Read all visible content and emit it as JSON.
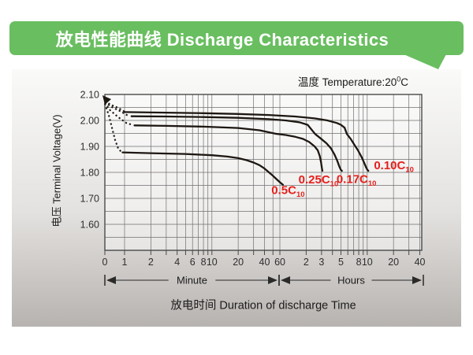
{
  "header": {
    "title": "放电性能曲线 Discharge Characteristics"
  },
  "colors": {
    "banner_green": "#69be60",
    "panel_top": "#fafaf9",
    "panel_bottom": "#b7b3b0",
    "grid": "#6f6f6f",
    "border": "#4a4a4a",
    "curve": "#1d1712",
    "series_label_red": "#e51f1b",
    "axis_text": "#2f2f2f"
  },
  "chart_data": {
    "type": "line",
    "title": "放电性能曲线 Discharge Characteristics",
    "temperature_note": {
      "prefix": "温度 Temperature:20",
      "degree": "0",
      "unit": "C"
    },
    "ylabel": "电压 Terminal Voltage(V)",
    "xlabel": "放电时间  Duration of discharge Time",
    "x_axis": {
      "scale": "logarithmic time (minutes), 0 pinned at left edge",
      "section_labels": [
        "Minute",
        "Hours"
      ],
      "ticks_minutes": [
        {
          "label": "0",
          "t": 0
        },
        {
          "label": "1",
          "t": 1
        },
        {
          "label": "2",
          "t": 2
        },
        {
          "label": "4",
          "t": 4
        },
        {
          "label": "6",
          "t": 6
        },
        {
          "label": "8",
          "t": 8
        },
        {
          "label": "10",
          "t": 10
        },
        {
          "label": "20",
          "t": 20
        },
        {
          "label": "40",
          "t": 40
        },
        {
          "label": "60",
          "t": 60
        }
      ],
      "ticks_hours": [
        {
          "label": "2",
          "t": 120
        },
        {
          "label": "3",
          "t": 180
        },
        {
          "label": "5",
          "t": 300
        },
        {
          "label": "8",
          "t": 480
        },
        {
          "label": "10",
          "t": 600
        },
        {
          "label": "20",
          "t": 1200
        },
        {
          "label": "40",
          "t": 2400
        }
      ],
      "gridlines_minutes": [
        1,
        2,
        3,
        4,
        5,
        6,
        7,
        8,
        9,
        10,
        20,
        30,
        40,
        50,
        60,
        120,
        180,
        240,
        300,
        360,
        420,
        480,
        540,
        600,
        1200,
        1800,
        2400
      ]
    },
    "y_axis": {
      "min": 1.5,
      "max": 2.1,
      "grid_step": 0.05,
      "ticks": [
        {
          "label": "2.10",
          "v": 2.1
        },
        {
          "label": "2.00",
          "v": 2.0
        },
        {
          "label": "1.90",
          "v": 1.9
        },
        {
          "label": "1.80",
          "v": 1.8
        },
        {
          "label": "1.70",
          "v": 1.7
        },
        {
          "label": "1.60",
          "v": 1.6
        }
      ]
    },
    "series": [
      {
        "name": "0.5C10",
        "label": "0.5C",
        "label_sub": "10",
        "label_anchor": {
          "t": 48,
          "v": 1.716
        },
        "dotted_points": [
          [
            0,
            2.065
          ],
          [
            0.66,
            2.02
          ],
          [
            0.72,
            1.97
          ],
          [
            0.78,
            1.925
          ],
          [
            0.85,
            1.89
          ],
          [
            0.93,
            1.878
          ]
        ],
        "points": [
          [
            0.95,
            1.877
          ],
          [
            2,
            1.874
          ],
          [
            5,
            1.871
          ],
          [
            10,
            1.866
          ],
          [
            15,
            1.861
          ],
          [
            20,
            1.855
          ],
          [
            25,
            1.847
          ],
          [
            30,
            1.838
          ],
          [
            35,
            1.828
          ],
          [
            40,
            1.815
          ],
          [
            45,
            1.8
          ],
          [
            50,
            1.787
          ],
          [
            55,
            1.774
          ],
          [
            60,
            1.762
          ],
          [
            65,
            1.752
          ]
        ]
      },
      {
        "name": "0.25C10",
        "label": "0.25C",
        "label_sub": "10",
        "label_anchor": {
          "t": 98,
          "v": 1.757
        },
        "dotted_points": [
          [
            0,
            2.068
          ],
          [
            0.68,
            2.04
          ],
          [
            0.85,
            2.012
          ],
          [
            1.05,
            1.99
          ],
          [
            1.25,
            1.982
          ]
        ],
        "points": [
          [
            1.3,
            1.981
          ],
          [
            3,
            1.979
          ],
          [
            8,
            1.976
          ],
          [
            20,
            1.971
          ],
          [
            35,
            1.962
          ],
          [
            53,
            1.949
          ],
          [
            70,
            1.944
          ],
          [
            90,
            1.937
          ],
          [
            110,
            1.929
          ],
          [
            130,
            1.917
          ],
          [
            150,
            1.9
          ],
          [
            163,
            1.885
          ],
          [
            172,
            1.862
          ],
          [
            178,
            1.838
          ],
          [
            182,
            1.815
          ],
          [
            184,
            1.806
          ]
        ]
      },
      {
        "name": "0.17C10",
        "label": "0.17C",
        "label_sub": "10",
        "label_anchor": {
          "t": 267,
          "v": 1.759
        },
        "dotted_points": [
          [
            0,
            2.071
          ],
          [
            0.7,
            2.053
          ],
          [
            0.9,
            2.035
          ],
          [
            1.1,
            2.018
          ]
        ],
        "points": [
          [
            1.2,
            2.016
          ],
          [
            3,
            2.015
          ],
          [
            8,
            2.013
          ],
          [
            20,
            2.01
          ],
          [
            45,
            2.005
          ],
          [
            70,
            2.0
          ],
          [
            100,
            1.993
          ],
          [
            125,
            1.983
          ],
          [
            152,
            1.948
          ],
          [
            180,
            1.928
          ],
          [
            205,
            1.912
          ],
          [
            230,
            1.893
          ],
          [
            252,
            1.87
          ],
          [
            272,
            1.845
          ],
          [
            288,
            1.822
          ],
          [
            300,
            1.809
          ],
          [
            308,
            1.806
          ]
        ]
      },
      {
        "name": "0.10C10",
        "label": "0.10C",
        "label_sub": "10",
        "label_anchor": {
          "t": 716,
          "v": 1.812
        },
        "dotted_points": [
          [
            0,
            2.074
          ],
          [
            0.7,
            2.06
          ],
          [
            0.85,
            2.048
          ],
          [
            1.0,
            2.034
          ]
        ],
        "points": [
          [
            1,
            2.032
          ],
          [
            3,
            2.03
          ],
          [
            8,
            2.028
          ],
          [
            20,
            2.025
          ],
          [
            45,
            2.021
          ],
          [
            90,
            2.015
          ],
          [
            150,
            2.008
          ],
          [
            210,
            2.0
          ],
          [
            270,
            1.99
          ],
          [
            300,
            1.983
          ],
          [
            330,
            1.972
          ],
          [
            351,
            1.948
          ],
          [
            390,
            1.928
          ],
          [
            430,
            1.905
          ],
          [
            470,
            1.885
          ],
          [
            520,
            1.858
          ],
          [
            556,
            1.835
          ],
          [
            585,
            1.818
          ],
          [
            605,
            1.809
          ],
          [
            617,
            1.806
          ]
        ]
      }
    ]
  }
}
